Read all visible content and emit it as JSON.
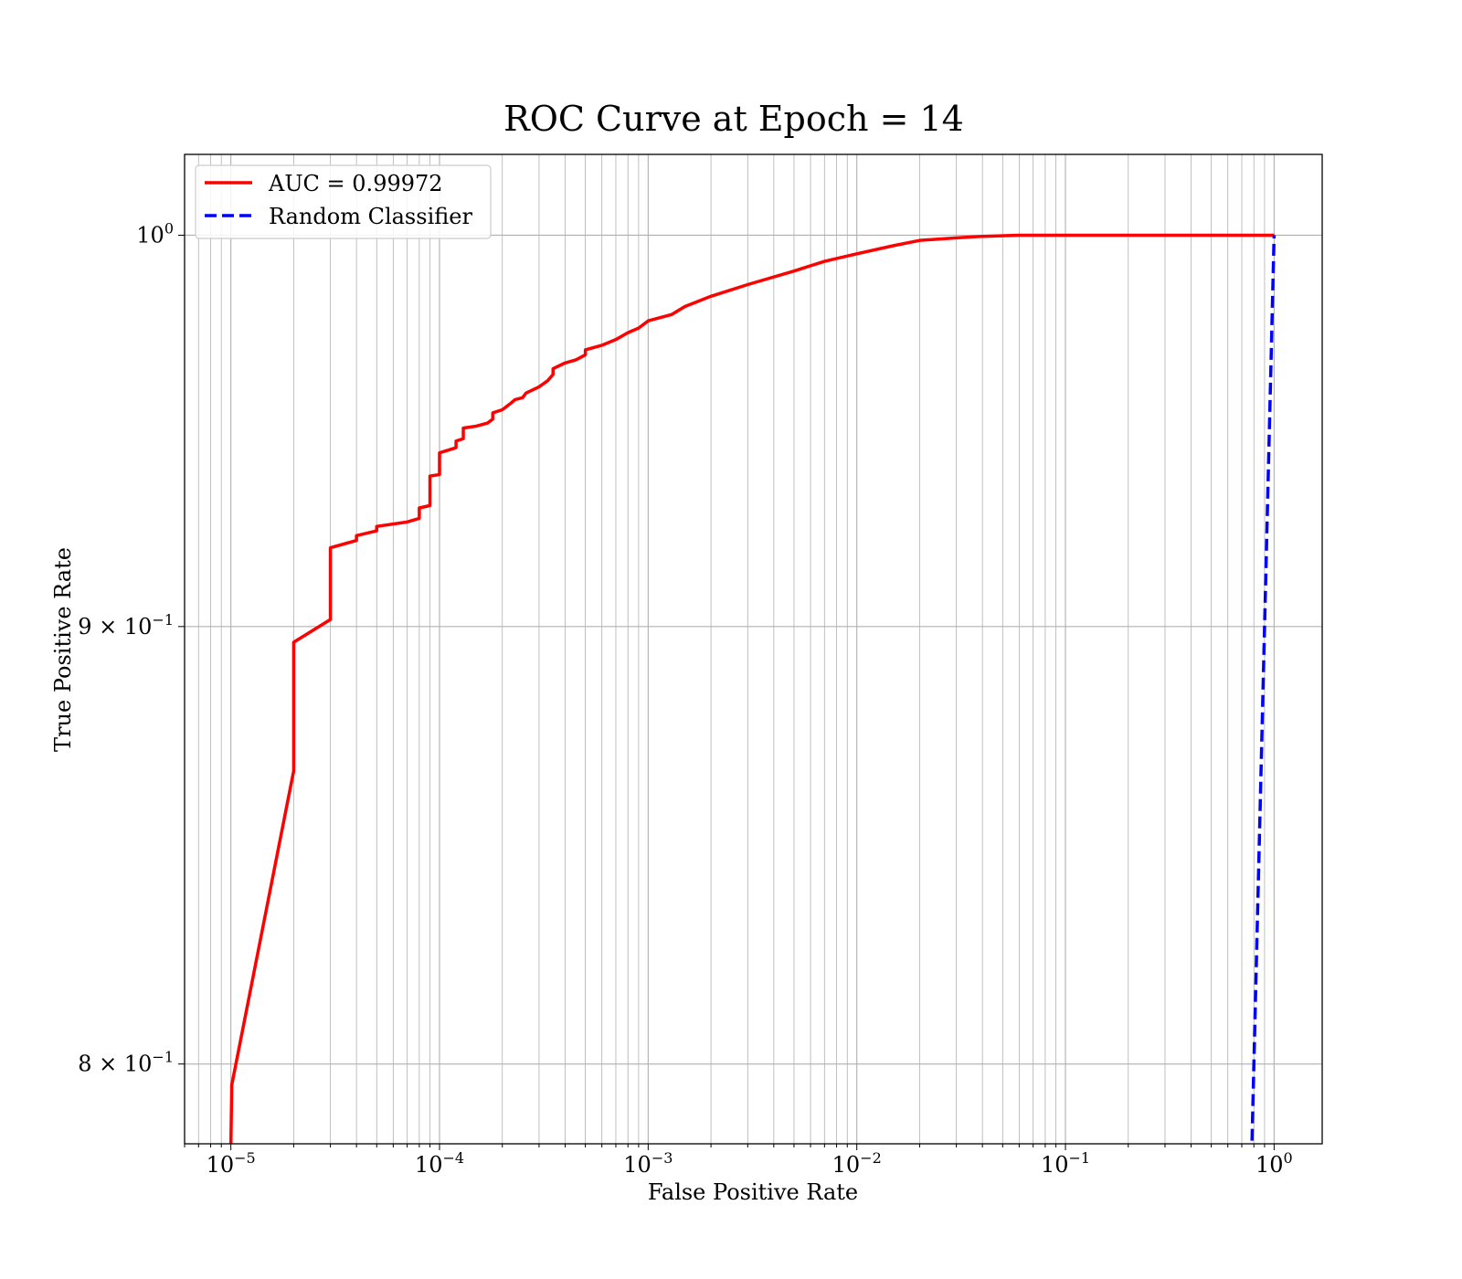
{
  "chart_data": {
    "type": "line",
    "title": "ROC Curve at Epoch = 14",
    "xlabel": "False Positive Rate",
    "ylabel": "True Positive Rate",
    "xscale": "log",
    "yscale": "log",
    "xlim": [
      6e-06,
      1.7
    ],
    "ylim": [
      0.783,
      1.022
    ],
    "grid": "both major and minor",
    "legend_position": "upper-left",
    "x_ticks": [
      {
        "base": "10",
        "exp": "−5",
        "value": 1e-05
      },
      {
        "base": "10",
        "exp": "−4",
        "value": 0.0001
      },
      {
        "base": "10",
        "exp": "−3",
        "value": 0.001
      },
      {
        "base": "10",
        "exp": "−2",
        "value": 0.01
      },
      {
        "base": "10",
        "exp": "−1",
        "value": 0.1
      },
      {
        "base": "10",
        "exp": "0",
        "value": 1
      }
    ],
    "y_ticks": [
      {
        "mantissa": "",
        "base": "10",
        "exp": "0",
        "value": 1.0
      },
      {
        "mantissa": "9 × ",
        "base": "10",
        "exp": "−1",
        "value": 0.9
      },
      {
        "mantissa": "8 × ",
        "base": "10",
        "exp": "−1",
        "value": 0.8
      }
    ],
    "series": [
      {
        "name": "AUC = 0.99972",
        "color": "#ff0000",
        "style": "solid",
        "x": [
          1e-05,
          1.01e-05,
          2e-05,
          2e-05,
          3e-05,
          3e-05,
          4e-05,
          4e-05,
          5e-05,
          5e-05,
          7e-05,
          8e-05,
          8e-05,
          9e-05,
          9e-05,
          0.0001,
          0.0001,
          0.00012,
          0.00012,
          0.00013,
          0.00013,
          0.00015,
          0.00017,
          0.00018,
          0.00018,
          0.0002,
          0.00022,
          0.00023,
          0.00025,
          0.00026,
          0.0003,
          0.00033,
          0.00035,
          0.00035,
          0.0004,
          0.00045,
          0.0005,
          0.0005,
          0.0006,
          0.0007,
          0.0008,
          0.0009,
          0.001,
          0.0013,
          0.0015,
          0.002,
          0.003,
          0.005,
          0.007,
          0.01,
          0.015,
          0.02,
          0.03,
          0.04,
          0.06,
          0.1,
          0.2,
          0.5,
          1.0
        ],
        "y": [
          0.7825,
          0.7955,
          0.8657,
          0.8962,
          0.9017,
          0.9193,
          0.9211,
          0.9223,
          0.9235,
          0.9246,
          0.9257,
          0.9266,
          0.9292,
          0.9298,
          0.9372,
          0.9376,
          0.9431,
          0.9444,
          0.9461,
          0.9467,
          0.9494,
          0.9499,
          0.9507,
          0.9517,
          0.9533,
          0.9541,
          0.9558,
          0.9567,
          0.9572,
          0.9584,
          0.96,
          0.9616,
          0.9632,
          0.9647,
          0.9662,
          0.967,
          0.9683,
          0.9696,
          0.9708,
          0.9723,
          0.9741,
          0.9753,
          0.9772,
          0.9789,
          0.981,
          0.9837,
          0.9868,
          0.9904,
          0.993,
          0.995,
          0.9972,
          0.9986,
          0.9993,
          0.9997,
          1.0,
          1.0,
          1.0,
          1.0,
          1.0
        ]
      },
      {
        "name": "Random Classifier",
        "color": "#0000ff",
        "style": "dashed",
        "x": [
          0.78,
          0.8,
          0.85,
          0.9,
          0.95,
          1.0
        ],
        "y": [
          0.78,
          0.8,
          0.85,
          0.9,
          0.95,
          1.0
        ]
      }
    ]
  }
}
